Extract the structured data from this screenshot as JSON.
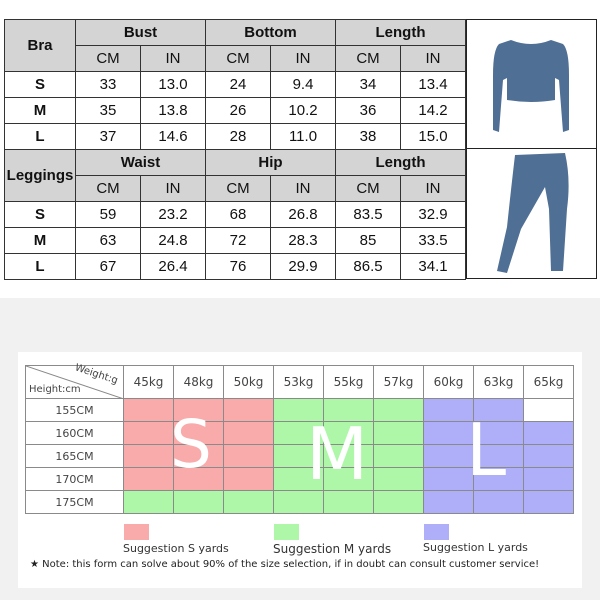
{
  "bra": {
    "label": "Bra",
    "groups": [
      "Bust",
      "Bottom",
      "Length"
    ],
    "units": [
      "CM",
      "IN",
      "CM",
      "IN",
      "CM",
      "IN"
    ],
    "rows": [
      {
        "size": "S",
        "values": [
          "33",
          "13.0",
          "24",
          "9.4",
          "34",
          "13.4"
        ]
      },
      {
        "size": "M",
        "values": [
          "35",
          "13.8",
          "26",
          "10.2",
          "36",
          "14.2"
        ]
      },
      {
        "size": "L",
        "values": [
          "37",
          "14.6",
          "28",
          "11.0",
          "38",
          "15.0"
        ]
      }
    ]
  },
  "leggings": {
    "label": "Leggings",
    "groups": [
      "Waist",
      "Hip",
      "Length"
    ],
    "units": [
      "CM",
      "IN",
      "CM",
      "IN",
      "CM",
      "IN"
    ],
    "rows": [
      {
        "size": "S",
        "values": [
          "59",
          "23.2",
          "68",
          "26.8",
          "83.5",
          "32.9"
        ]
      },
      {
        "size": "M",
        "values": [
          "63",
          "24.8",
          "72",
          "28.3",
          "85",
          "33.5"
        ]
      },
      {
        "size": "L",
        "values": [
          "67",
          "26.4",
          "76",
          "29.9",
          "86.5",
          "34.1"
        ]
      }
    ]
  },
  "garment_color": "#4f6f94",
  "chart": {
    "weight_label": "Weight:g",
    "height_label": "Height:cm",
    "weights": [
      "45kg",
      "48kg",
      "50kg",
      "53kg",
      "55kg",
      "57kg",
      "60kg",
      "63kg",
      "65kg"
    ],
    "rows": [
      {
        "height": "155CM",
        "sizes": [
          "S",
          "S",
          "S",
          "M",
          "M",
          "M",
          "L",
          "L",
          ""
        ]
      },
      {
        "height": "160CM",
        "sizes": [
          "S",
          "S",
          "S",
          "M",
          "M",
          "M",
          "L",
          "L",
          "L"
        ]
      },
      {
        "height": "165CM",
        "sizes": [
          "S",
          "S",
          "S",
          "M",
          "M",
          "M",
          "L",
          "L",
          "L"
        ]
      },
      {
        "height": "170CM",
        "sizes": [
          "S",
          "S",
          "S",
          "M",
          "M",
          "M",
          "L",
          "L",
          "L"
        ]
      },
      {
        "height": "175CM",
        "sizes": [
          "M",
          "M",
          "M",
          "M",
          "M",
          "M",
          "L",
          "L",
          "L"
        ]
      }
    ],
    "big_letters": [
      "S",
      "M",
      "L"
    ],
    "colors": {
      "S": "#f9aaaa",
      "M": "#aef7a8",
      "L": "#aeaef9"
    },
    "legend": [
      "Suggestion S yards",
      "Suggestion M yards",
      "Suggestion L yards"
    ],
    "note": "★ Note: this form can solve about 90% of the size selection, if in doubt can consult customer service!"
  }
}
